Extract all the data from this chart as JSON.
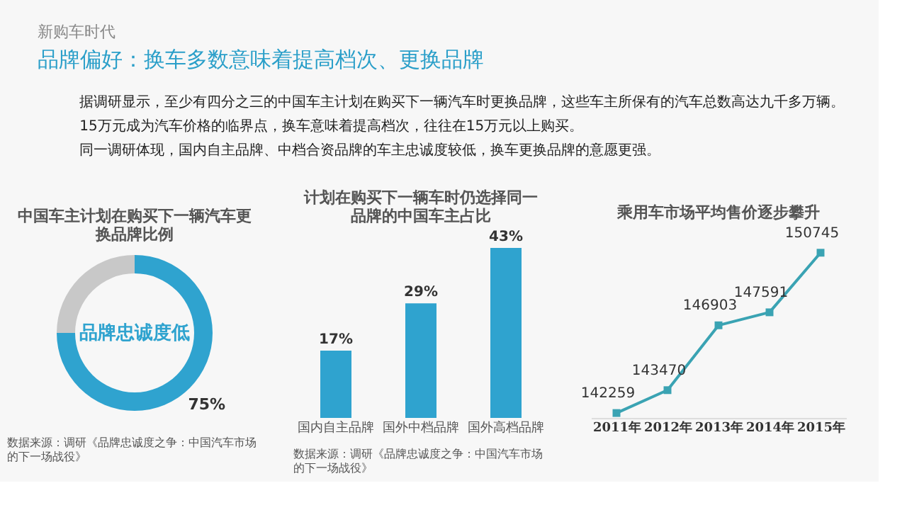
{
  "chart_data": [
    {
      "type": "other",
      "subtitle": "新购车时代",
      "title": "品牌偏好：换车多数意味着提高档次、更换品牌",
      "annotations": [
        "据调研显示，至少有四分之三的中国车主计划在购买下一辆汽车时更换品牌，这些车主所保有的汽车总数高达九千多万辆。",
        "15万元成为汽车价格的临界点，换车意味着提高档次，往往在15万元以上购买。",
        "同一调研体现，国内自主品牌、中档合资品牌的车主忠诚度较低，换车更换品牌的意愿更强。"
      ]
    },
    {
      "type": "donut",
      "title": "中国车主计划在购买下一辆汽车更换品牌比例",
      "categories": [
        null,
        null
      ],
      "values": [
        75,
        25
      ],
      "colors": [
        "#2fa3cf",
        "#c8c8c8"
      ],
      "value_labels": [
        "75%",
        null
      ],
      "annotations": [
        "品牌忠诚度低",
        "数据来源：调研《品牌忠诚度之争：中国汽车市场的下一场战役》"
      ]
    },
    {
      "type": "bar",
      "title": "计划在购买下一辆车时仍选择同一品牌的中国车主占比",
      "categories": [
        "国内自主品牌",
        "国外中档品牌",
        "国外高档品牌"
      ],
      "values": [
        17,
        29,
        43
      ],
      "color": "#2fa3cf",
      "value_labels": [
        "17%",
        "29%",
        "43%"
      ],
      "annotations": [
        "数据来源：调研《品牌忠诚度之争：中国汽车市场的下一场战役》"
      ]
    },
    {
      "type": "line",
      "title": "乘用车市场平均售价逐步攀升",
      "categories": [
        "2011年",
        "2012年",
        "2013年",
        "2014年",
        "2015年"
      ],
      "values": [
        142259,
        143470,
        146903,
        147591,
        150745
      ],
      "color": "#3aa3b3",
      "marker": "square",
      "data_labels": true
    }
  ]
}
